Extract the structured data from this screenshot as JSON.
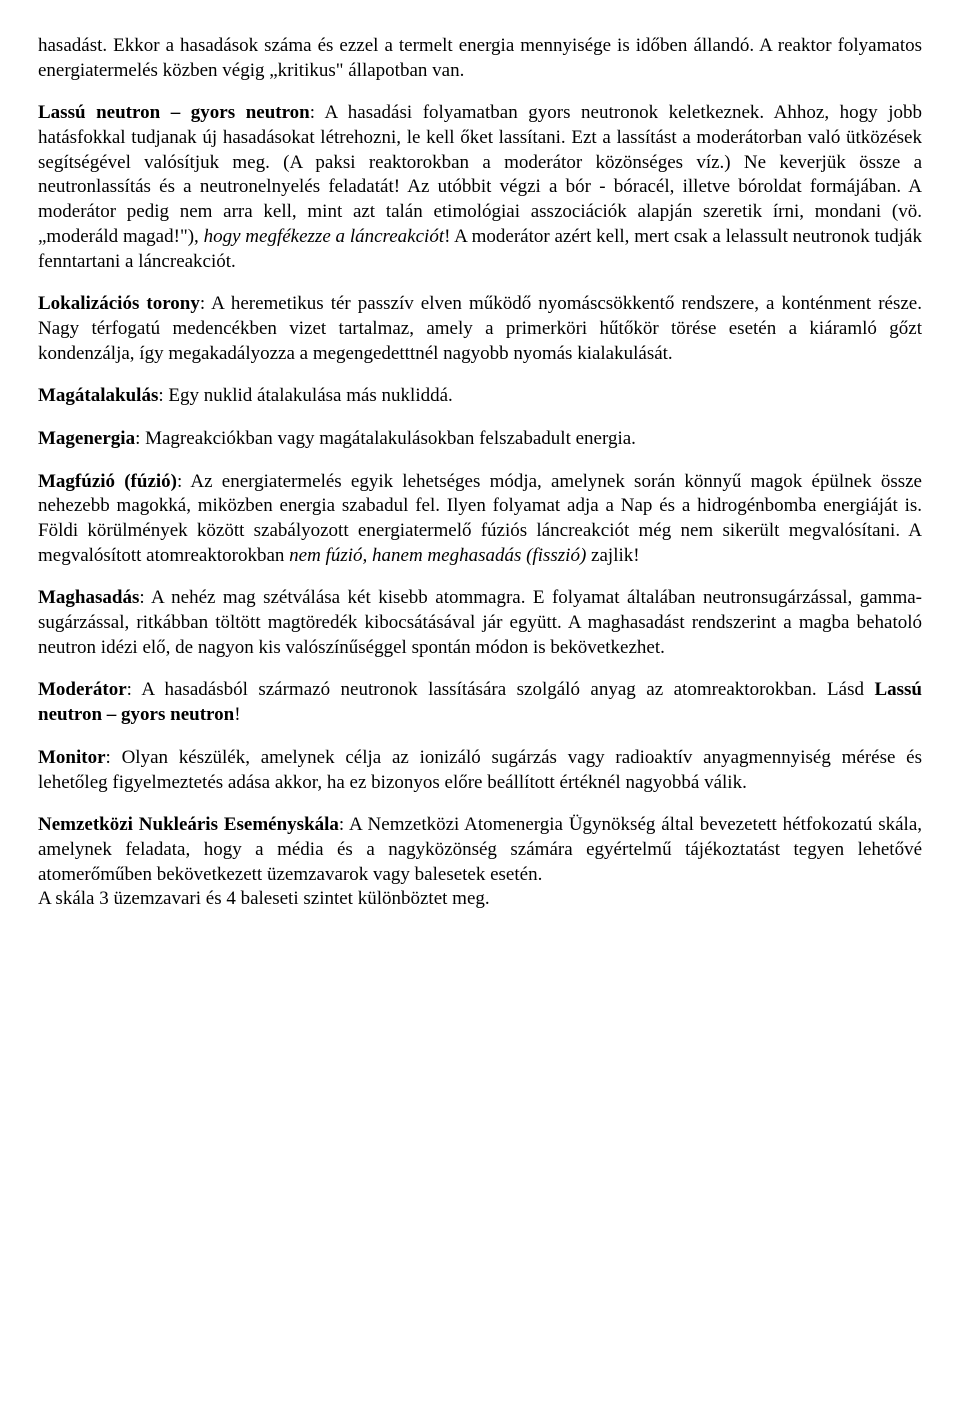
{
  "p1_frag": "hasadást. Ekkor a hasadások száma és ezzel a termelt energia mennyisége is időben állandó. A reaktor folyamatos energiatermelés közben végig „kritikus\" állapotban van.",
  "p2_term": "Lassú neutron – gyors neutron",
  "p2_body1": ": A hasadási folyamatban gyors neutronok keletkeznek. Ahhoz, hogy jobb hatásfokkal tudjanak új hasadásokat létrehozni, le kell őket lassítani. Ezt a lassítást a moderátorban való ütközések segítségével valósítjuk meg. (A paksi reaktorokban a moderátor közönséges víz.) Ne keverjük össze a neutronlassítás és a neutronelnyelés feladatát! Az utóbbit végzi a bór - bóracél, illetve bóroldat formájában. A moderátor pedig nem arra kell, mint azt talán etimológiai asszociációk alapján szeretik írni, mondani (vö. „moderáld magad!\"), ",
  "p2_italic": "hogy megfékezze a láncreakciót",
  "p2_body2": "! A moderátor azért kell, mert csak a lelassult neutronok tudják fenntartani a láncreakciót.",
  "p3_term": "Lokalizációs torony",
  "p3_body": ": A heremetikus tér passzív elven működő nyomáscsökkentő rendszere, a konténment része. Nagy térfogatú medencékben vizet tartalmaz, amely a primerköri hűtőkör törése esetén a kiáramló gőzt kondenzálja, így megakadályozza a megengedetttnél nagyobb nyomás kialakulását.",
  "p4_term": "Magátalakulás",
  "p4_body": ": Egy nuklid átalakulása más nukliddá.",
  "p5_term": "Magenergia",
  "p5_body": ": Magreakciókban vagy magátalakulásokban felszabadult energia.",
  "p6_term": "Magfúzió (fúzió)",
  "p6_body1": ": Az energiatermelés egyik lehetséges módja, amelynek során könnyű magok épülnek össze nehezebb magokká, miközben energia szabadul fel. Ilyen folyamat adja a Nap és a hidrogénbomba energiáját is. Földi körülmények között szabályozott energiatermelő fúziós láncreakciót még nem sikerült megvalósítani. A megvalósított atomreaktorokban ",
  "p6_italic": "nem fúzió, hanem meghasadás (fisszió)",
  "p6_body2": " zajlik!",
  "p7_term": "Maghasadás",
  "p7_body": ": A nehéz mag szétválása két kisebb atommagra. E folyamat általában neutronsugárzással, gamma-sugárzással, ritkábban töltött magtöredék kibocsátásával jár együtt. A maghasadást rendszerint a magba behatoló neutron idézi elő, de nagyon kis valószínűséggel spontán módon is bekövetkezhet.",
  "p8_term": "Moderátor",
  "p8_body1": ": A hasadásból származó neutronok lassítására szolgáló anyag az atomreaktorokban. Lásd ",
  "p8_link": "Lassú neutron – gyors neutron",
  "p8_body2": "!",
  "p9_term": "Monitor",
  "p9_body": ": Olyan készülék, amelynek célja az ionizáló sugárzás vagy radioaktív anyagmennyiség mérése és lehetőleg figyelmeztetés adása akkor, ha ez bizonyos előre beállított értéknél nagyobbá válik.",
  "p10_term": "Nemzetközi Nukleáris Eseményskála",
  "p10_body": ": A Nemzetközi Atomenergia Ügynökség által bevezetett hétfokozatú skála, amelynek feladata, hogy a média és a nagyközönség számára egyértelmű tájékoztatást tegyen lehetővé atomerőműben bekövetkezett üzemzavarok vagy balesetek esetén.",
  "p10_line2": "A skála 3 üzemzavari és 4 baleseti szintet különböztet meg."
}
